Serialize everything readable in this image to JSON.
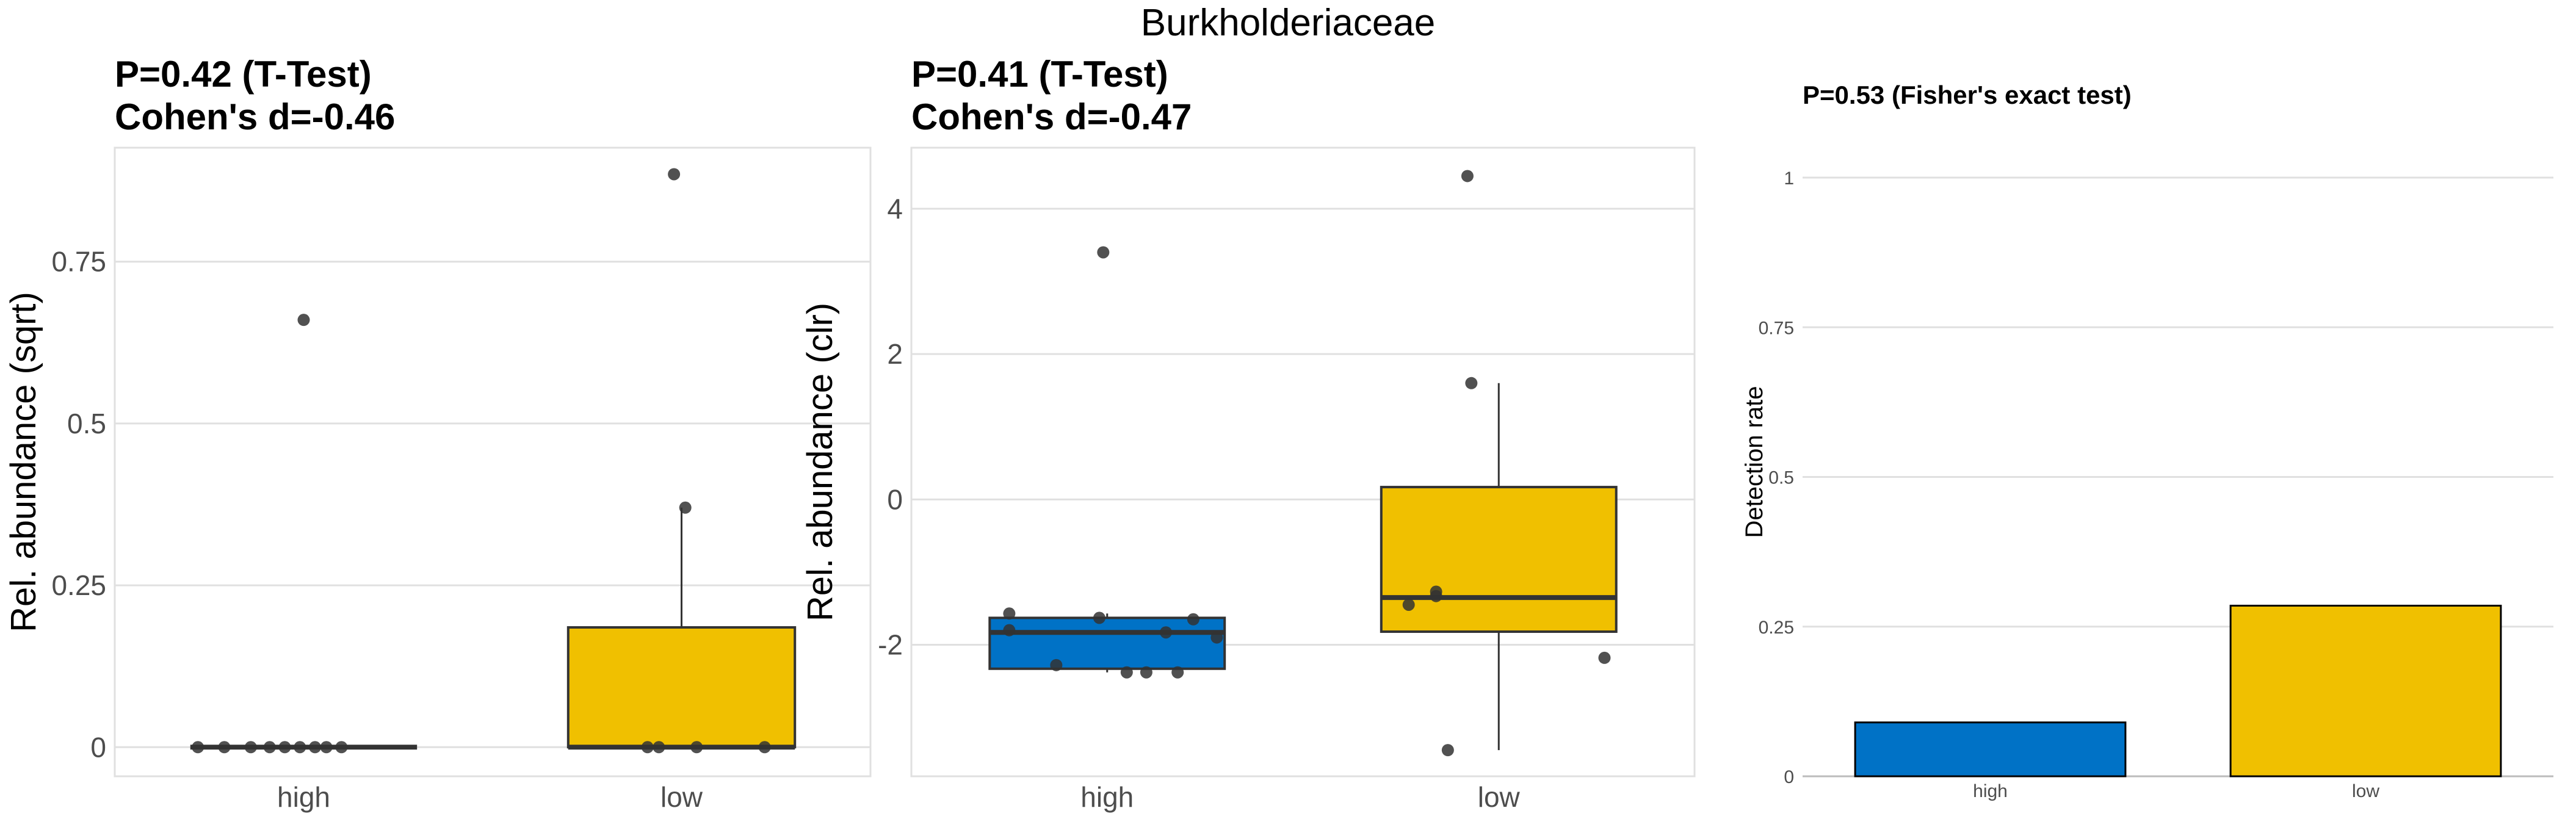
{
  "title": "Burkholderiaceae",
  "colors": {
    "high": "#0072C6",
    "low": "#F0C000",
    "outline": "#333333",
    "grid": "#e0e0e0",
    "point": "#333333"
  },
  "chart_data": [
    {
      "type": "box",
      "subtitle_lines": [
        "P=0.42 (T-Test)",
        "Cohen's d=-0.46"
      ],
      "ylabel": "Rel. abundance (sqrt)",
      "categories": [
        "high",
        "low"
      ],
      "ylim": [
        -0.045,
        0.926
      ],
      "yticks": [
        0,
        0.25,
        0.5,
        0.75
      ],
      "ytick_labels": [
        "0",
        "0.25",
        "0.5",
        "0.75"
      ],
      "grid": true,
      "boxes": [
        {
          "category": "high",
          "q1": 0,
          "median": 0,
          "q3": 0,
          "whisker_low": 0,
          "whisker_high": 0,
          "points": [
            0,
            0,
            0,
            0,
            0,
            0,
            0,
            0,
            0,
            0.66
          ]
        },
        {
          "category": "low",
          "q1": 0,
          "median": 0,
          "q3": 0.185,
          "whisker_low": 0,
          "whisker_high": 0.37,
          "points": [
            0.885,
            0.37,
            0,
            0,
            0,
            0
          ]
        }
      ]
    },
    {
      "type": "box",
      "subtitle_lines": [
        "P=0.41 (T-Test)",
        "Cohen's d=-0.47"
      ],
      "ylabel": "Rel. abundance (clr)",
      "categories": [
        "high",
        "low"
      ],
      "ylim": [
        -3.81,
        4.84
      ],
      "yticks": [
        -2,
        0,
        2,
        4
      ],
      "ytick_labels": [
        "-2",
        "0",
        "2",
        "4"
      ],
      "grid": true,
      "boxes": [
        {
          "category": "high",
          "q1": -2.33,
          "median": -1.83,
          "q3": -1.63,
          "whisker_low": -2.38,
          "whisker_high": -1.57,
          "points": [
            -1.57,
            -1.8,
            -1.63,
            -1.65,
            -1.83,
            -1.9,
            -2.28,
            -2.38,
            -2.38,
            -2.38,
            3.4
          ]
        },
        {
          "category": "low",
          "q1": -1.82,
          "median": -1.35,
          "q3": 0.17,
          "whisker_low": -3.45,
          "whisker_high": 1.6,
          "points": [
            4.45,
            1.6,
            -1.27,
            -1.33,
            -1.45,
            -2.18,
            -3.45
          ]
        }
      ]
    },
    {
      "type": "bar",
      "subtitle_lines": [
        "P=0.53 (Fisher's exact test)"
      ],
      "ylabel": "Detection rate",
      "categories": [
        "high",
        "low"
      ],
      "values": [
        0.09,
        0.285
      ],
      "ylim": [
        0,
        1.05
      ],
      "yticks": [
        0,
        0.25,
        0.5,
        0.75,
        1
      ],
      "ytick_labels": [
        "0",
        "0.25",
        "0.5",
        "0.75",
        "1"
      ],
      "grid": true
    }
  ]
}
